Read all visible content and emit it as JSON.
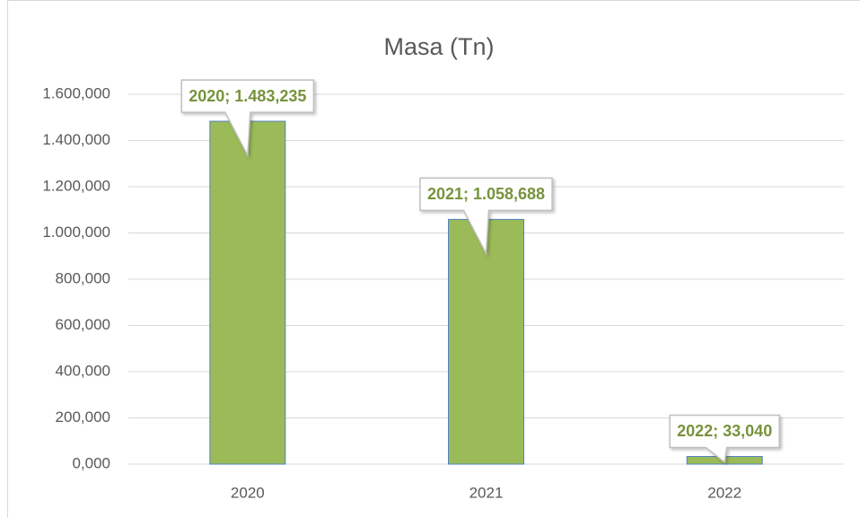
{
  "chart_data": {
    "type": "bar",
    "title": "Masa (Tn)",
    "categories": [
      "2020",
      "2021",
      "2022"
    ],
    "values": [
      1483.235,
      1058.688,
      33.04
    ],
    "value_labels": [
      "2020; 1.483,235",
      "2021; 1.058,688",
      "2022; 33,040"
    ],
    "color": "#9bbb59",
    "ylim": [
      0,
      1600
    ],
    "yticks": [
      {
        "value": 0,
        "label": "0,000"
      },
      {
        "value": 200,
        "label": "200,000"
      },
      {
        "value": 400,
        "label": "400,000"
      },
      {
        "value": 600,
        "label": "600,000"
      },
      {
        "value": 800,
        "label": "800,000"
      },
      {
        "value": 1000,
        "label": "1.000,000"
      },
      {
        "value": 1200,
        "label": "1.200,000"
      },
      {
        "value": 1400,
        "label": "1.400,000"
      },
      {
        "value": 1600,
        "label": "1.600,000"
      }
    ],
    "grid": true
  }
}
